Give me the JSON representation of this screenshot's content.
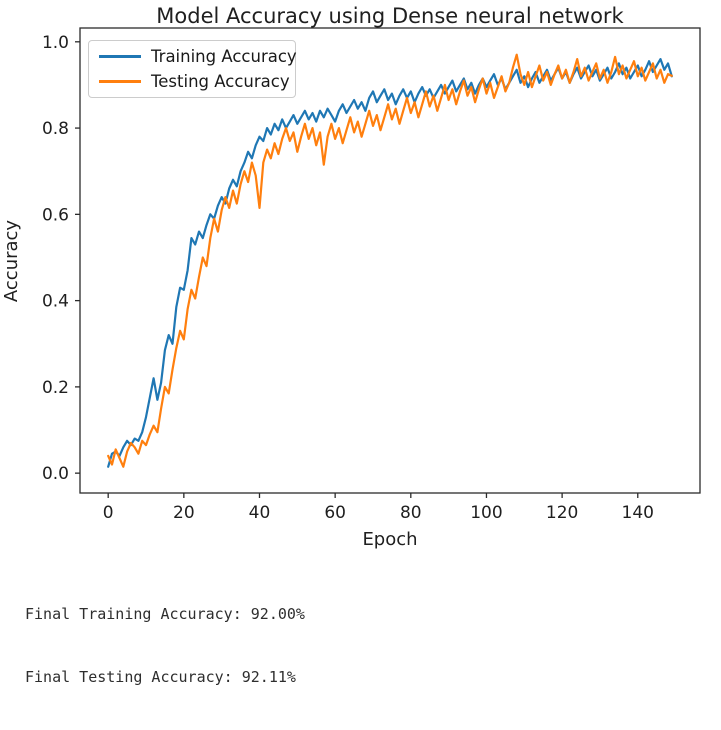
{
  "chart_data": {
    "type": "line",
    "title": "Model Accuracy using Dense neural network",
    "xlabel": "Epoch",
    "ylabel": "Accuracy",
    "xticks": [
      0,
      20,
      40,
      60,
      80,
      100,
      120,
      140
    ],
    "yticks": [
      "0.0",
      "0.2",
      "0.4",
      "0.6",
      "0.8",
      "1.0"
    ],
    "xlim": [
      -7.45,
      156.45
    ],
    "ylim": [
      -0.046,
      1.032
    ],
    "grid": false,
    "legend_position": "upper left",
    "x_start": 0,
    "x_step": 1,
    "series": [
      {
        "name": "Training Accuracy",
        "color": "#1f77b4",
        "values": [
          0.015,
          0.045,
          0.05,
          0.04,
          0.06,
          0.075,
          0.065,
          0.08,
          0.075,
          0.095,
          0.13,
          0.175,
          0.22,
          0.17,
          0.21,
          0.285,
          0.32,
          0.3,
          0.385,
          0.43,
          0.425,
          0.47,
          0.545,
          0.53,
          0.56,
          0.545,
          0.575,
          0.6,
          0.59,
          0.62,
          0.64,
          0.625,
          0.66,
          0.68,
          0.665,
          0.7,
          0.72,
          0.745,
          0.73,
          0.76,
          0.78,
          0.77,
          0.8,
          0.785,
          0.81,
          0.795,
          0.82,
          0.8,
          0.815,
          0.83,
          0.81,
          0.825,
          0.84,
          0.82,
          0.835,
          0.815,
          0.84,
          0.825,
          0.845,
          0.83,
          0.815,
          0.84,
          0.855,
          0.835,
          0.85,
          0.865,
          0.845,
          0.86,
          0.84,
          0.87,
          0.885,
          0.86,
          0.875,
          0.89,
          0.865,
          0.88,
          0.855,
          0.875,
          0.89,
          0.87,
          0.885,
          0.86,
          0.88,
          0.895,
          0.875,
          0.89,
          0.87,
          0.885,
          0.9,
          0.88,
          0.895,
          0.91,
          0.885,
          0.9,
          0.915,
          0.89,
          0.905,
          0.88,
          0.9,
          0.915,
          0.895,
          0.91,
          0.925,
          0.9,
          0.915,
          0.89,
          0.905,
          0.92,
          0.935,
          0.905,
          0.92,
          0.895,
          0.915,
          0.93,
          0.905,
          0.92,
          0.935,
          0.91,
          0.925,
          0.94,
          0.915,
          0.93,
          0.905,
          0.925,
          0.94,
          0.915,
          0.93,
          0.945,
          0.92,
          0.935,
          0.91,
          0.925,
          0.94,
          0.915,
          0.93,
          0.95,
          0.925,
          0.94,
          0.915,
          0.93,
          0.945,
          0.92,
          0.935,
          0.955,
          0.93,
          0.945,
          0.96,
          0.935,
          0.95,
          0.92
        ]
      },
      {
        "name": "Testing Accuracy",
        "color": "#ff7f0e",
        "values": [
          0.04,
          0.02,
          0.055,
          0.035,
          0.015,
          0.05,
          0.07,
          0.06,
          0.045,
          0.075,
          0.065,
          0.09,
          0.11,
          0.095,
          0.15,
          0.2,
          0.185,
          0.24,
          0.29,
          0.33,
          0.31,
          0.38,
          0.425,
          0.405,
          0.455,
          0.5,
          0.48,
          0.545,
          0.59,
          0.56,
          0.61,
          0.64,
          0.615,
          0.655,
          0.625,
          0.67,
          0.7,
          0.675,
          0.72,
          0.69,
          0.615,
          0.72,
          0.75,
          0.73,
          0.765,
          0.74,
          0.775,
          0.8,
          0.77,
          0.79,
          0.745,
          0.78,
          0.81,
          0.775,
          0.8,
          0.76,
          0.79,
          0.715,
          0.78,
          0.81,
          0.775,
          0.8,
          0.765,
          0.795,
          0.825,
          0.79,
          0.815,
          0.78,
          0.81,
          0.84,
          0.805,
          0.83,
          0.795,
          0.825,
          0.855,
          0.82,
          0.845,
          0.81,
          0.84,
          0.87,
          0.835,
          0.86,
          0.825,
          0.855,
          0.885,
          0.85,
          0.875,
          0.84,
          0.87,
          0.9,
          0.865,
          0.89,
          0.855,
          0.885,
          0.91,
          0.875,
          0.895,
          0.86,
          0.89,
          0.915,
          0.88,
          0.905,
          0.87,
          0.895,
          0.92,
          0.885,
          0.905,
          0.94,
          0.97,
          0.925,
          0.9,
          0.93,
          0.895,
          0.92,
          0.945,
          0.91,
          0.93,
          0.9,
          0.925,
          0.945,
          0.915,
          0.935,
          0.905,
          0.93,
          0.96,
          0.92,
          0.94,
          0.91,
          0.93,
          0.95,
          0.915,
          0.935,
          0.905,
          0.93,
          0.965,
          0.925,
          0.945,
          0.915,
          0.935,
          0.955,
          0.92,
          0.94,
          0.91,
          0.93,
          0.95,
          0.915,
          0.935,
          0.905,
          0.925,
          0.9211
        ]
      }
    ]
  },
  "console": {
    "lines": [
      "Final Training Accuracy: 92.00%",
      "Final Testing Accuracy: 92.11%"
    ]
  }
}
